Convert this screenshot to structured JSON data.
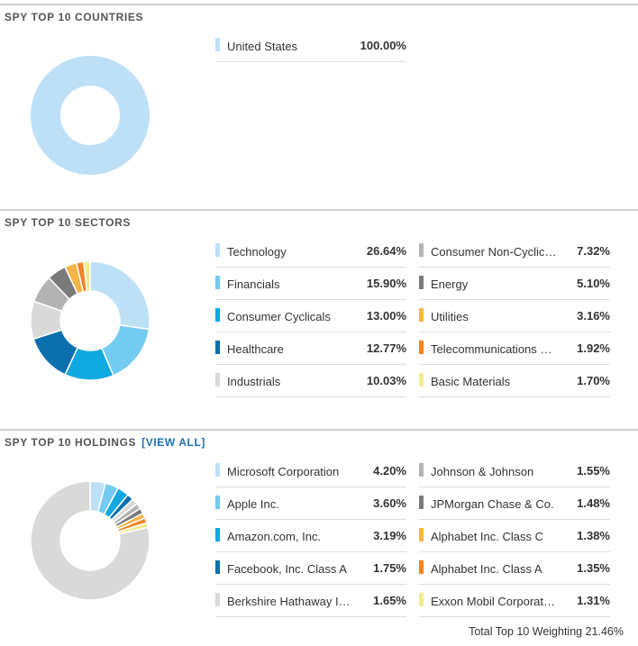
{
  "colors": {
    "palette": [
      "#bde0f6",
      "#73cbf2",
      "#10a8e0",
      "#0b6fae",
      "#d9d9d9",
      "#b3b3b3",
      "#7a7a7a",
      "#f7b548",
      "#f08424",
      "#f2ec8f"
    ]
  },
  "countries": {
    "title": "SPY Top 10 Countries",
    "items": [
      {
        "label": "United States",
        "value": "100.00%"
      }
    ]
  },
  "sectors": {
    "title": "SPY Top 10 Sectors",
    "items": [
      {
        "label": "Technology",
        "value": "26.64%"
      },
      {
        "label": "Financials",
        "value": "15.90%"
      },
      {
        "label": "Consumer Cyclicals",
        "value": "13.00%"
      },
      {
        "label": "Healthcare",
        "value": "12.77%"
      },
      {
        "label": "Industrials",
        "value": "10.03%"
      },
      {
        "label": "Consumer Non-Cyclicals",
        "value": "7.32%"
      },
      {
        "label": "Energy",
        "value": "5.10%"
      },
      {
        "label": "Utilities",
        "value": "3.16%"
      },
      {
        "label": "Telecommunications Services",
        "value": "1.92%"
      },
      {
        "label": "Basic Materials",
        "value": "1.70%"
      }
    ]
  },
  "holdings": {
    "title": "SPY Top 10 Holdings",
    "view_all": "[VIEW ALL]",
    "items": [
      {
        "label": "Microsoft Corporation",
        "value": "4.20%"
      },
      {
        "label": "Apple Inc.",
        "value": "3.60%"
      },
      {
        "label": "Amazon.com, Inc.",
        "value": "3.19%"
      },
      {
        "label": "Facebook, Inc. Class A",
        "value": "1.75%"
      },
      {
        "label": "Berkshire Hathaway Inc. Class B",
        "value": "1.65%"
      },
      {
        "label": "Johnson & Johnson",
        "value": "1.55%"
      },
      {
        "label": "JPMorgan Chase & Co.",
        "value": "1.48%"
      },
      {
        "label": "Alphabet Inc. Class C",
        "value": "1.38%"
      },
      {
        "label": "Alphabet Inc. Class A",
        "value": "1.35%"
      },
      {
        "label": "Exxon Mobil Corporation",
        "value": "1.31%"
      }
    ],
    "total_label": "Total Top 10 Weighting",
    "total_value": "21.46%"
  },
  "chart_data": [
    {
      "type": "pie",
      "title": "SPY Top 10 Countries",
      "categories": [
        "United States"
      ],
      "values": [
        100.0
      ]
    },
    {
      "type": "pie",
      "title": "SPY Top 10 Sectors",
      "categories": [
        "Technology",
        "Financials",
        "Consumer Cyclicals",
        "Healthcare",
        "Industrials",
        "Consumer Non-Cyclicals",
        "Energy",
        "Utilities",
        "Telecommunications Services",
        "Basic Materials"
      ],
      "values": [
        26.64,
        15.9,
        13.0,
        12.77,
        10.03,
        7.32,
        5.1,
        3.16,
        1.92,
        1.7
      ]
    },
    {
      "type": "pie",
      "title": "SPY Top 10 Holdings",
      "categories": [
        "Microsoft Corporation",
        "Apple Inc.",
        "Amazon.com, Inc.",
        "Facebook, Inc. Class A",
        "Berkshire Hathaway Inc. Class B",
        "Johnson & Johnson",
        "JPMorgan Chase & Co.",
        "Alphabet Inc. Class C",
        "Alphabet Inc. Class A",
        "Exxon Mobil Corporation",
        "Other"
      ],
      "values": [
        4.2,
        3.6,
        3.19,
        1.75,
        1.65,
        1.55,
        1.48,
        1.38,
        1.35,
        1.31,
        78.54
      ]
    }
  ]
}
